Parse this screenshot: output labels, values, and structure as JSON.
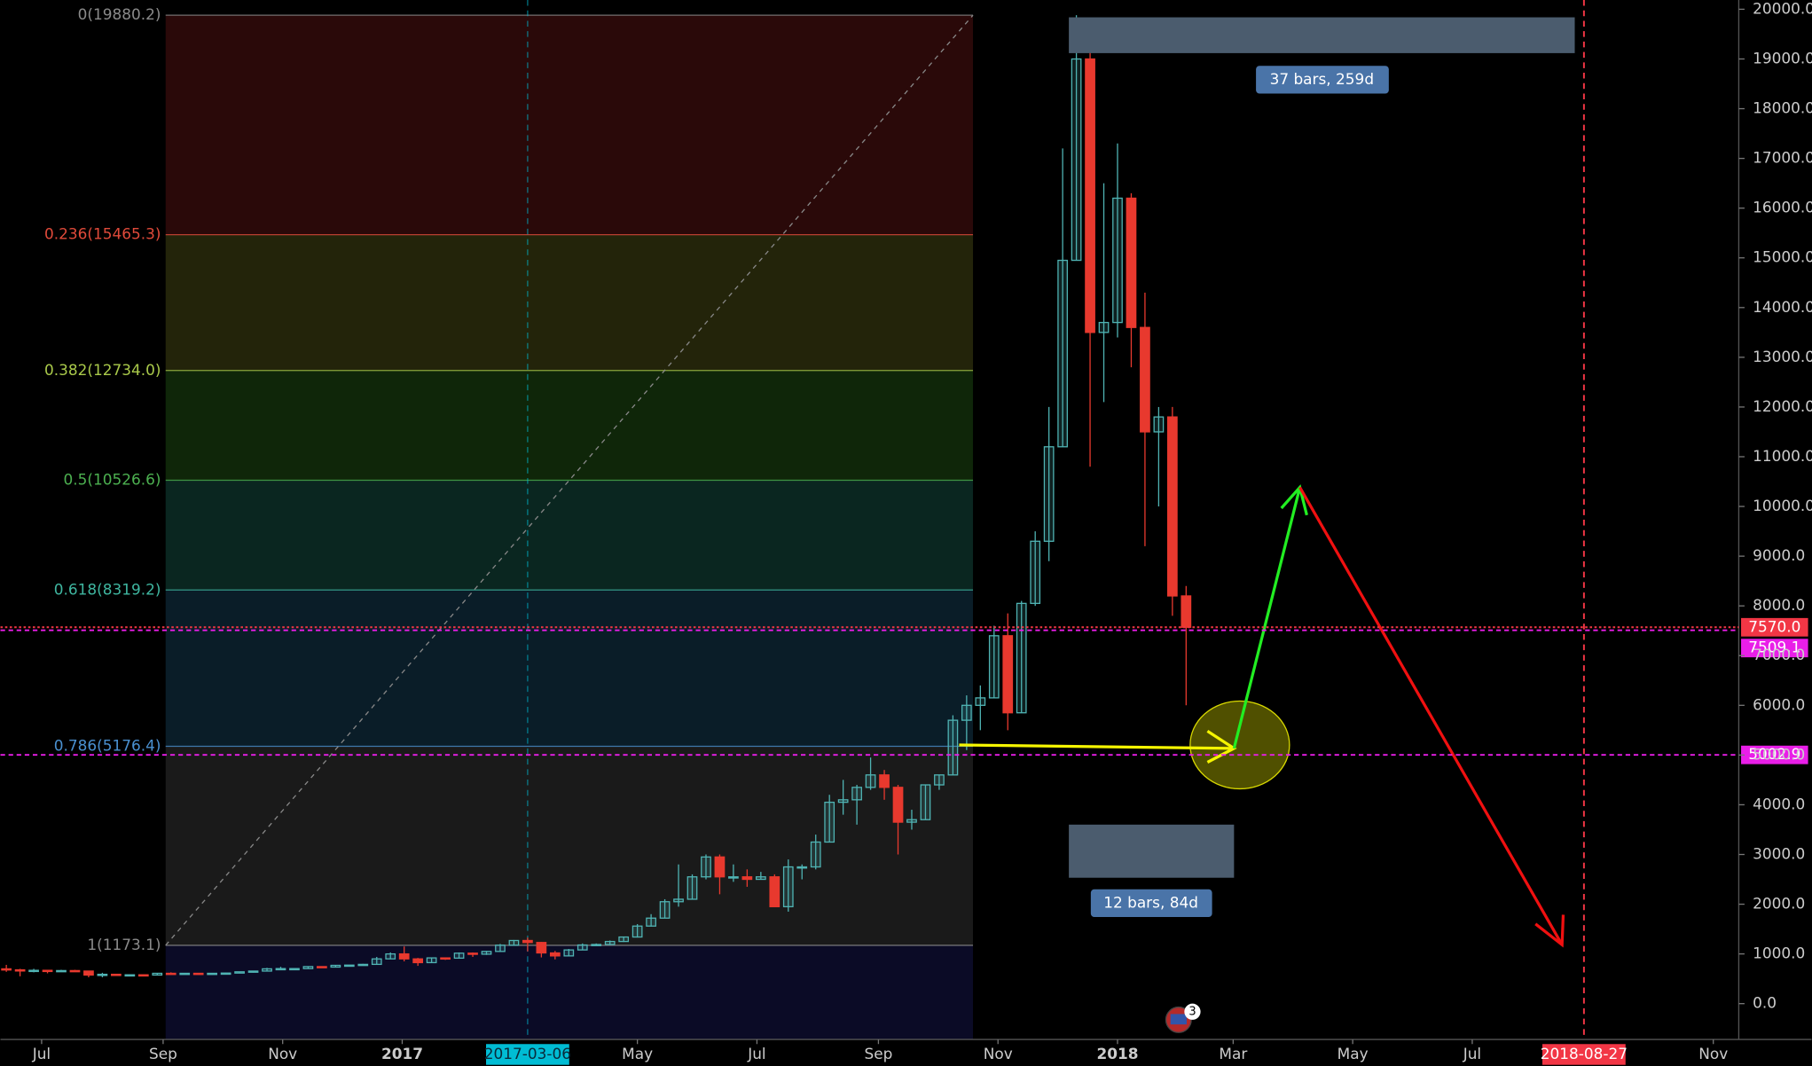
{
  "chart_data": {
    "type": "candlestick",
    "xlim": [
      "2016-06-10",
      "2018-11-14"
    ],
    "ylim": [
      -720,
      20186
    ],
    "up_color": "#4fb3b3",
    "down_color": "#e8392e",
    "yticks": [
      {
        "value": 0,
        "label": "0.0"
      },
      {
        "value": 1000,
        "label": "1000.0"
      },
      {
        "value": 2000,
        "label": "2000.0"
      },
      {
        "value": 3000,
        "label": "3000.0"
      },
      {
        "value": 4000,
        "label": "4000.0"
      },
      {
        "value": 5000,
        "label": "5000.0"
      },
      {
        "value": 6000,
        "label": "6000.0"
      },
      {
        "value": 7000,
        "label": "7000.0"
      },
      {
        "value": 8000,
        "label": "8000.0"
      },
      {
        "value": 9000,
        "label": "9000.0"
      },
      {
        "value": 10000,
        "label": "10000.0"
      },
      {
        "value": 11000,
        "label": "11000.0"
      },
      {
        "value": 12000,
        "label": "12000.0"
      },
      {
        "value": 13000,
        "label": "13000.0"
      },
      {
        "value": 14000,
        "label": "14000.0"
      },
      {
        "value": 15000,
        "label": "15000.0"
      },
      {
        "value": 16000,
        "label": "16000.0"
      },
      {
        "value": 17000,
        "label": "17000.0"
      },
      {
        "value": 18000,
        "label": "18000.0"
      },
      {
        "value": 19000,
        "label": "19000.0"
      },
      {
        "value": 20000,
        "label": "20000.0"
      }
    ],
    "xticks": [
      {
        "value": "2016-07-01",
        "label": "Jul"
      },
      {
        "value": "2016-09-01",
        "label": "Sep"
      },
      {
        "value": "2016-11-01",
        "label": "Nov"
      },
      {
        "value": "2017-01-01",
        "label": "2017",
        "major": true
      },
      {
        "value": "2017-05-01",
        "label": "May"
      },
      {
        "value": "2017-07-01",
        "label": "Jul"
      },
      {
        "value": "2017-09-01",
        "label": "Sep"
      },
      {
        "value": "2017-11-01",
        "label": "Nov"
      },
      {
        "value": "2018-01-01",
        "label": "2018",
        "major": true
      },
      {
        "value": "2018-03-01",
        "label": "Mar"
      },
      {
        "value": "2018-05-01",
        "label": "May"
      },
      {
        "value": "2018-07-01",
        "label": "Jul"
      },
      {
        "value": "2018-11-01",
        "label": "Nov"
      }
    ],
    "fib_levels": [
      {
        "label": "0(19880.2)",
        "value": 19880.2,
        "color": "#8a8a8a",
        "fill": "#2a0909"
      },
      {
        "label": "0.236(15465.3)",
        "value": 15465.3,
        "color": "#e04a3a",
        "fill": "#23240a"
      },
      {
        "label": "0.382(12734.0)",
        "value": 12734.0,
        "color": "#a9c94a",
        "fill": "#0f2609"
      },
      {
        "label": "0.5(10526.6)",
        "value": 10526.6,
        "color": "#4cb050",
        "fill": "#0a2620"
      },
      {
        "label": "0.618(8319.2)",
        "value": 8319.2,
        "color": "#3fb6a0",
        "fill": "#0a1d28"
      },
      {
        "label": "0.786(5176.4)",
        "value": 5176.4,
        "color": "#4a90d0",
        "fill": "#1a1a1a"
      },
      {
        "label": "1(1173.1)",
        "value": 1173.1,
        "color": "#8a8a8a",
        "fill": "#0b0b26"
      }
    ],
    "price_lines": [
      {
        "value": 7570.0,
        "label": "7570.0",
        "color": "#f23645",
        "dash": "2 2"
      },
      {
        "value": 7509.1,
        "label": "7509.1",
        "color": "#e91ee8",
        "dash": "4 3"
      },
      {
        "value": 5002.9,
        "label": "5002.9",
        "color": "#e91ee8",
        "dash": "4 3"
      }
    ],
    "markers": [
      {
        "date": "2017-03-06",
        "color": "#00bcd4",
        "text_color": "#0a2a3a"
      },
      {
        "date": "2018-08-27",
        "color": "#f23645",
        "text_color": "#ffffff"
      }
    ],
    "ranges": [
      {
        "label": "37 bars, 259d"
      },
      {
        "label": "12 bars, 84d"
      }
    ],
    "notification_count": 3,
    "candles": [
      [
        "2016-06-13",
        700,
        780,
        640,
        680
      ],
      [
        "2016-06-20",
        680,
        700,
        550,
        660
      ],
      [
        "2016-06-27",
        660,
        700,
        630,
        670
      ],
      [
        "2016-07-04",
        670,
        680,
        610,
        650
      ],
      [
        "2016-07-11",
        650,
        680,
        640,
        665
      ],
      [
        "2016-07-18",
        665,
        680,
        650,
        655
      ],
      [
        "2016-07-25",
        655,
        660,
        530,
        575
      ],
      [
        "2016-08-01",
        575,
        620,
        530,
        590
      ],
      [
        "2016-08-08",
        590,
        600,
        570,
        575
      ],
      [
        "2016-08-15",
        575,
        590,
        565,
        580
      ],
      [
        "2016-08-22",
        580,
        590,
        570,
        575
      ],
      [
        "2016-08-29",
        575,
        615,
        570,
        610
      ],
      [
        "2016-09-05",
        610,
        630,
        600,
        605
      ],
      [
        "2016-09-12",
        605,
        615,
        595,
        610
      ],
      [
        "2016-09-19",
        610,
        615,
        590,
        600
      ],
      [
        "2016-09-26",
        600,
        615,
        595,
        610
      ],
      [
        "2016-10-03",
        610,
        620,
        605,
        615
      ],
      [
        "2016-10-10",
        615,
        645,
        610,
        640
      ],
      [
        "2016-10-17",
        640,
        660,
        625,
        655
      ],
      [
        "2016-10-24",
        655,
        720,
        650,
        700
      ],
      [
        "2016-10-31",
        700,
        740,
        690,
        705
      ],
      [
        "2016-11-07",
        705,
        715,
        690,
        705
      ],
      [
        "2016-11-14",
        705,
        750,
        700,
        745
      ],
      [
        "2016-11-21",
        745,
        750,
        725,
        735
      ],
      [
        "2016-11-28",
        735,
        775,
        730,
        770
      ],
      [
        "2016-12-05",
        770,
        780,
        755,
        775
      ],
      [
        "2016-12-12",
        775,
        800,
        770,
        790
      ],
      [
        "2016-12-19",
        790,
        940,
        785,
        900
      ],
      [
        "2016-12-26",
        900,
        1030,
        895,
        1000
      ],
      [
        "2017-01-02",
        1000,
        1150,
        850,
        900
      ],
      [
        "2017-01-09",
        900,
        920,
        760,
        825
      ],
      [
        "2017-01-16",
        825,
        930,
        820,
        920
      ],
      [
        "2017-01-23",
        920,
        925,
        880,
        915
      ],
      [
        "2017-01-30",
        915,
        1030,
        910,
        1015
      ],
      [
        "2017-02-06",
        1015,
        1030,
        940,
        995
      ],
      [
        "2017-02-13",
        995,
        1060,
        980,
        1050
      ],
      [
        "2017-02-20",
        1050,
        1200,
        1040,
        1175
      ],
      [
        "2017-02-27",
        1175,
        1280,
        1170,
        1270
      ],
      [
        "2017-03-06",
        1270,
        1330,
        1050,
        1230
      ],
      [
        "2017-03-13",
        1230,
        1240,
        930,
        1020
      ],
      [
        "2017-03-20",
        1020,
        1060,
        890,
        960
      ],
      [
        "2017-03-27",
        960,
        1100,
        950,
        1080
      ],
      [
        "2017-04-03",
        1080,
        1210,
        1075,
        1180
      ],
      [
        "2017-04-10",
        1180,
        1210,
        1160,
        1190
      ],
      [
        "2017-04-17",
        1190,
        1270,
        1180,
        1250
      ],
      [
        "2017-04-24",
        1250,
        1350,
        1240,
        1340
      ],
      [
        "2017-05-01",
        1340,
        1600,
        1330,
        1560
      ],
      [
        "2017-05-08",
        1560,
        1800,
        1550,
        1720
      ],
      [
        "2017-05-15",
        1720,
        2100,
        1720,
        2050
      ],
      [
        "2017-05-22",
        2050,
        2800,
        1950,
        2100
      ],
      [
        "2017-05-29",
        2100,
        2600,
        2100,
        2550
      ],
      [
        "2017-06-05",
        2550,
        3000,
        2500,
        2950
      ],
      [
        "2017-06-12",
        2950,
        3000,
        2200,
        2550
      ],
      [
        "2017-06-19",
        2550,
        2800,
        2450,
        2550
      ],
      [
        "2017-06-26",
        2550,
        2700,
        2350,
        2500
      ],
      [
        "2017-07-03",
        2500,
        2650,
        2500,
        2550
      ],
      [
        "2017-07-10",
        2550,
        2600,
        1950,
        1950
      ],
      [
        "2017-07-17",
        1950,
        2900,
        1850,
        2750
      ],
      [
        "2017-07-24",
        2750,
        2800,
        2500,
        2750
      ],
      [
        "2017-07-31",
        2750,
        3400,
        2700,
        3250
      ],
      [
        "2017-08-07",
        3250,
        4200,
        3250,
        4050
      ],
      [
        "2017-08-14",
        4050,
        4500,
        3800,
        4100
      ],
      [
        "2017-08-21",
        4100,
        4400,
        3600,
        4350
      ],
      [
        "2017-08-28",
        4350,
        4950,
        4300,
        4600
      ],
      [
        "2017-09-04",
        4600,
        4700,
        4100,
        4350
      ],
      [
        "2017-09-11",
        4350,
        4400,
        3000,
        3650
      ],
      [
        "2017-09-18",
        3650,
        3900,
        3500,
        3700
      ],
      [
        "2017-09-25",
        3700,
        4400,
        3700,
        4400
      ],
      [
        "2017-10-02",
        4400,
        4600,
        4300,
        4600
      ],
      [
        "2017-10-09",
        4600,
        5800,
        4600,
        5700
      ],
      [
        "2017-10-16",
        5700,
        6200,
        5100,
        6000
      ],
      [
        "2017-10-23",
        6000,
        6400,
        5500,
        6150
      ],
      [
        "2017-10-30",
        6150,
        7600,
        6150,
        7400
      ],
      [
        "2017-11-06",
        7400,
        7850,
        5500,
        5850
      ],
      [
        "2017-11-13",
        5850,
        8100,
        5850,
        8050
      ],
      [
        "2017-11-20",
        8050,
        9500,
        8000,
        9300
      ],
      [
        "2017-11-27",
        9300,
        12000,
        8900,
        11200
      ],
      [
        "2017-12-04",
        11200,
        17200,
        11200,
        14950
      ],
      [
        "2017-12-11",
        14950,
        19880,
        14950,
        19000
      ],
      [
        "2017-12-18",
        19000,
        19200,
        10800,
        13500
      ],
      [
        "2017-12-25",
        13500,
        16500,
        12100,
        13700
      ],
      [
        "2018-01-01",
        13700,
        17300,
        13400,
        16200
      ],
      [
        "2018-01-08",
        16200,
        16300,
        12800,
        13600
      ],
      [
        "2018-01-15",
        13600,
        14300,
        9200,
        11500
      ],
      [
        "2018-01-22",
        11500,
        12000,
        10000,
        11800
      ],
      [
        "2018-01-29",
        11800,
        12000,
        7800,
        8200
      ],
      [
        "2018-02-05",
        8200,
        8400,
        6000,
        7570
      ]
    ]
  }
}
